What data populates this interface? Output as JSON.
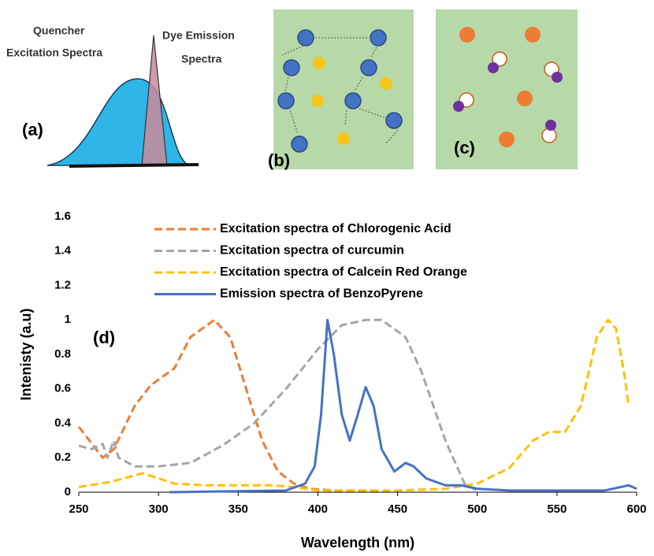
{
  "panels": {
    "a": {
      "labels": [
        "Quencher",
        "Excitation Spectra",
        "Dye Emission",
        "Spectra"
      ],
      "tag": "(a)"
    },
    "b": {
      "tag": "(b)"
    },
    "c": {
      "tag": "(c)"
    }
  },
  "chart_data": {
    "type": "line",
    "annotation": "(d)",
    "x_label": "Wavelength (nm)",
    "y_label": "Intenisty (a.u)",
    "xlim": [
      250,
      600
    ],
    "xticks": [
      250,
      300,
      350,
      400,
      450,
      500,
      550,
      600
    ],
    "ylim": [
      0,
      1.6
    ],
    "yticks": [
      0,
      0.2,
      0.4,
      0.6,
      0.8,
      1,
      1.2,
      1.4,
      1.6
    ],
    "series": [
      {
        "name": "Excitation spectra of Chlorogenic Acid",
        "color": "#ed7d31",
        "style": "dashed",
        "x": [
          250,
          265,
          272,
          285,
          295,
          310,
          320,
          335,
          345,
          355,
          365,
          375,
          385,
          395,
          410,
          440
        ],
        "values": [
          0.38,
          0.2,
          0.25,
          0.5,
          0.62,
          0.72,
          0.9,
          1.0,
          0.9,
          0.6,
          0.3,
          0.12,
          0.05,
          0.02,
          0.01,
          0.01
        ]
      },
      {
        "name": "Excitation spectra of curcumin",
        "color": "#a5a5a5",
        "style": "dashed",
        "x": [
          250,
          258,
          265,
          268,
          272,
          275,
          285,
          300,
          320,
          340,
          360,
          380,
          400,
          415,
          430,
          440,
          455,
          465,
          480,
          492,
          500
        ],
        "values": [
          0.27,
          0.25,
          0.28,
          0.2,
          0.3,
          0.2,
          0.15,
          0.15,
          0.17,
          0.27,
          0.4,
          0.6,
          0.83,
          0.97,
          1.0,
          1.0,
          0.9,
          0.7,
          0.3,
          0.05,
          0.01
        ]
      },
      {
        "name": "Excitation spectra of Calcein Red Orange",
        "color": "#ffc000",
        "style": "dashed",
        "x": [
          250,
          270,
          290,
          300,
          310,
          330,
          370,
          385,
          400,
          450,
          480,
          500,
          520,
          535,
          545,
          555,
          565,
          575,
          582,
          587,
          592,
          595
        ],
        "values": [
          0.03,
          0.06,
          0.11,
          0.08,
          0.05,
          0.04,
          0.04,
          0.03,
          0.01,
          0.01,
          0.02,
          0.05,
          0.14,
          0.3,
          0.35,
          0.35,
          0.5,
          0.9,
          1.0,
          0.95,
          0.7,
          0.5
        ]
      },
      {
        "name": "Emission spectra of BenzoPyrene",
        "color": "#4472c4",
        "style": "solid",
        "x": [
          307,
          380,
          392,
          398,
          402,
          406,
          410,
          415,
          420,
          425,
          430,
          435,
          440,
          448,
          455,
          460,
          468,
          480,
          490,
          500,
          520,
          580,
          590,
          595,
          600
        ],
        "values": [
          0,
          0.01,
          0.05,
          0.15,
          0.45,
          1.0,
          0.8,
          0.45,
          0.3,
          0.45,
          0.61,
          0.5,
          0.25,
          0.12,
          0.17,
          0.15,
          0.08,
          0.04,
          0.04,
          0.02,
          0.01,
          0.01,
          0.03,
          0.04,
          0.02
        ]
      }
    ]
  }
}
